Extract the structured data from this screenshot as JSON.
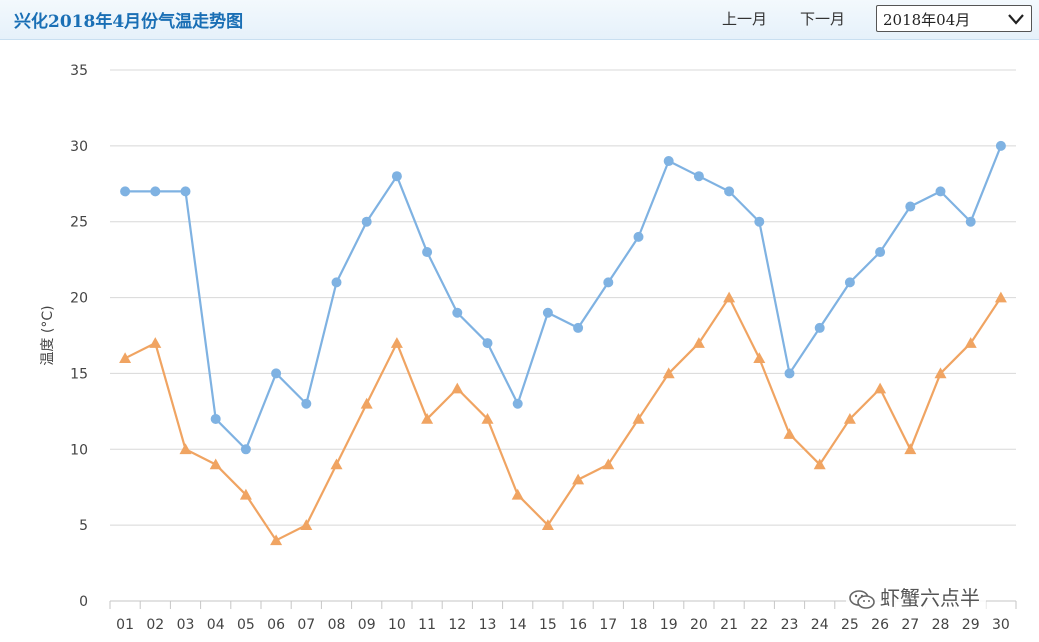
{
  "header": {
    "title": "兴化2018年4月份气温走势图",
    "prev_label": "上一月",
    "next_label": "下一月",
    "month_select": "2018年04月"
  },
  "watermark": {
    "text": "虾蟹六点半",
    "icon": "wechat-icon"
  },
  "colors": {
    "high": "#7fb2e2",
    "low": "#f0a462",
    "grid": "#d8d8d8",
    "title": "#1a6fb5"
  },
  "chart_data": {
    "type": "line",
    "x": [
      "01",
      "02",
      "03",
      "04",
      "05",
      "06",
      "07",
      "08",
      "09",
      "10",
      "11",
      "12",
      "13",
      "14",
      "15",
      "16",
      "17",
      "18",
      "19",
      "20",
      "21",
      "22",
      "23",
      "24",
      "25",
      "26",
      "27",
      "28",
      "29",
      "30"
    ],
    "series": [
      {
        "values": [
          27,
          27,
          27,
          12,
          10,
          15,
          13,
          21,
          25,
          28,
          23,
          19,
          17,
          13,
          19,
          18,
          21,
          24,
          29,
          28,
          27,
          25,
          15,
          18,
          21,
          23,
          26,
          27,
          25,
          30
        ],
        "marker": "circle",
        "color": "#7fb2e2"
      },
      {
        "values": [
          16,
          17,
          10,
          9,
          7,
          4,
          5,
          9,
          13,
          17,
          12,
          14,
          12,
          7,
          5,
          8,
          9,
          12,
          15,
          17,
          20,
          16,
          11,
          9,
          12,
          14,
          10,
          15,
          17,
          20
        ],
        "marker": "triangle",
        "color": "#f0a462"
      }
    ],
    "ylabel": "温度 (°C)",
    "xlabel": "",
    "ylim": [
      0,
      35
    ],
    "yticks": [
      0,
      5,
      10,
      15,
      20,
      25,
      30,
      35
    ],
    "grid": true
  }
}
